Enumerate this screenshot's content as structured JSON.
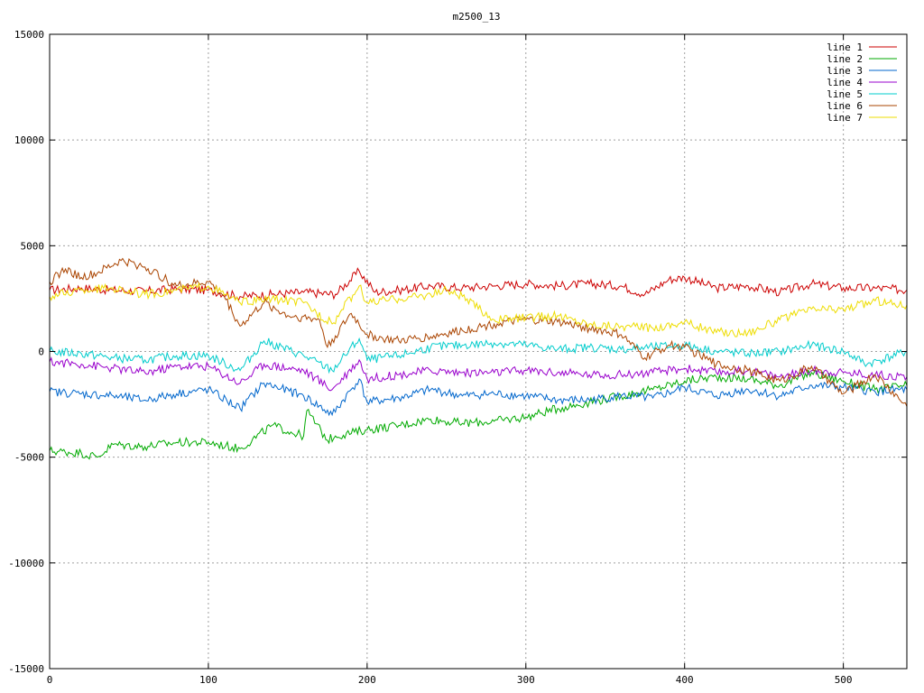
{
  "chart_data": {
    "type": "line",
    "title": "m2500_13",
    "xlabel": "",
    "ylabel": "",
    "xlim": [
      0,
      540
    ],
    "ylim": [
      -15000,
      15000
    ],
    "xticks": [
      0,
      100,
      200,
      300,
      400,
      500
    ],
    "yticks": [
      -15000,
      -10000,
      -5000,
      0,
      5000,
      10000,
      15000
    ],
    "grid": true,
    "legend_position": "top-right",
    "series": [
      {
        "name": "line 1",
        "color": "#cc0000",
        "x": [
          0,
          20,
          40,
          60,
          80,
          100,
          120,
          140,
          160,
          180,
          195,
          205,
          220,
          240,
          260,
          280,
          300,
          320,
          340,
          360,
          375,
          390,
          400,
          420,
          440,
          460,
          480,
          500,
          520,
          540
        ],
        "y": [
          2900,
          3000,
          2900,
          2850,
          2950,
          2900,
          2600,
          2700,
          2800,
          2700,
          3800,
          2800,
          2900,
          3100,
          3000,
          3100,
          3200,
          3100,
          3200,
          3100,
          2700,
          3400,
          3500,
          3000,
          3100,
          2800,
          3200,
          3000,
          3000,
          2900
        ]
      },
      {
        "name": "line 2",
        "color": "#00aa00",
        "x": [
          0,
          20,
          30,
          40,
          60,
          80,
          100,
          120,
          140,
          160,
          162,
          175,
          180,
          200,
          220,
          240,
          260,
          280,
          300,
          320,
          340,
          360,
          380,
          400,
          420,
          440,
          460,
          480,
          500,
          520,
          540
        ],
        "y": [
          -4700,
          -4800,
          -5000,
          -4400,
          -4500,
          -4300,
          -4300,
          -4600,
          -3500,
          -4000,
          -2800,
          -4200,
          -4000,
          -3700,
          -3500,
          -3200,
          -3400,
          -3300,
          -3100,
          -2700,
          -2400,
          -2100,
          -1800,
          -1400,
          -1200,
          -1300,
          -1600,
          -1000,
          -1400,
          -1800,
          -1600
        ]
      },
      {
        "name": "line 3",
        "color": "#0066cc",
        "x": [
          0,
          20,
          40,
          60,
          80,
          100,
          120,
          135,
          160,
          178,
          195,
          200,
          220,
          240,
          260,
          280,
          300,
          320,
          340,
          360,
          380,
          400,
          420,
          440,
          460,
          480,
          500,
          520,
          540
        ],
        "y": [
          -1900,
          -2000,
          -2100,
          -2300,
          -2000,
          -1800,
          -2700,
          -1500,
          -2100,
          -3000,
          -1300,
          -2400,
          -2200,
          -1800,
          -2100,
          -2000,
          -2100,
          -2300,
          -2300,
          -2100,
          -2200,
          -1700,
          -2100,
          -1800,
          -2100,
          -1600,
          -1700,
          -1900,
          -1800
        ]
      },
      {
        "name": "line 4",
        "color": "#9900cc",
        "x": [
          0,
          20,
          40,
          60,
          80,
          100,
          120,
          135,
          160,
          178,
          195,
          200,
          220,
          240,
          260,
          280,
          300,
          320,
          340,
          360,
          380,
          400,
          420,
          440,
          460,
          480,
          500,
          520,
          540
        ],
        "y": [
          -500,
          -600,
          -800,
          -1000,
          -700,
          -700,
          -1500,
          -600,
          -900,
          -1800,
          -400,
          -1300,
          -1100,
          -900,
          -1000,
          -1000,
          -900,
          -1000,
          -1100,
          -1100,
          -1000,
          -800,
          -1000,
          -900,
          -1200,
          -900,
          -1000,
          -1100,
          -1200
        ]
      },
      {
        "name": "line 5",
        "color": "#00cccc",
        "x": [
          0,
          20,
          40,
          60,
          80,
          100,
          120,
          135,
          160,
          178,
          195,
          200,
          220,
          240,
          260,
          280,
          300,
          320,
          340,
          360,
          380,
          400,
          420,
          440,
          460,
          480,
          500,
          515,
          540
        ],
        "y": [
          0,
          -100,
          -300,
          -400,
          -200,
          -200,
          -900,
          500,
          -200,
          -900,
          600,
          -400,
          -200,
          200,
          300,
          400,
          300,
          100,
          200,
          100,
          200,
          300,
          0,
          -100,
          0,
          300,
          0,
          -600,
          0
        ]
      },
      {
        "name": "line 6",
        "color": "#aa4400",
        "x": [
          0,
          10,
          20,
          30,
          45,
          60,
          80,
          100,
          110,
          120,
          135,
          150,
          170,
          175,
          190,
          200,
          210,
          220,
          240,
          260,
          280,
          300,
          320,
          340,
          360,
          375,
          390,
          400,
          420,
          440,
          460,
          480,
          500,
          520,
          540
        ],
        "y": [
          3300,
          3900,
          3500,
          3700,
          4300,
          4000,
          3100,
          3300,
          2600,
          1200,
          2300,
          1700,
          1500,
          200,
          1800,
          800,
          600,
          500,
          700,
          1000,
          1300,
          1500,
          1400,
          1100,
          800,
          -300,
          300,
          200,
          -600,
          -900,
          -1400,
          -700,
          -2000,
          -1100,
          -2600
        ]
      },
      {
        "name": "line 7",
        "color": "#eedd00",
        "x": [
          0,
          20,
          40,
          60,
          80,
          100,
          120,
          140,
          160,
          178,
          195,
          200,
          220,
          240,
          250,
          260,
          280,
          300,
          320,
          340,
          360,
          380,
          400,
          420,
          440,
          460,
          480,
          500,
          520,
          540
        ],
        "y": [
          2600,
          2900,
          3000,
          2700,
          2900,
          3100,
          2300,
          2500,
          2300,
          1300,
          3100,
          2300,
          2500,
          2700,
          2900,
          2600,
          1500,
          1600,
          1700,
          1300,
          1200,
          1100,
          1400,
          900,
          900,
          1500,
          2000,
          2000,
          2400,
          2200
        ]
      }
    ]
  }
}
